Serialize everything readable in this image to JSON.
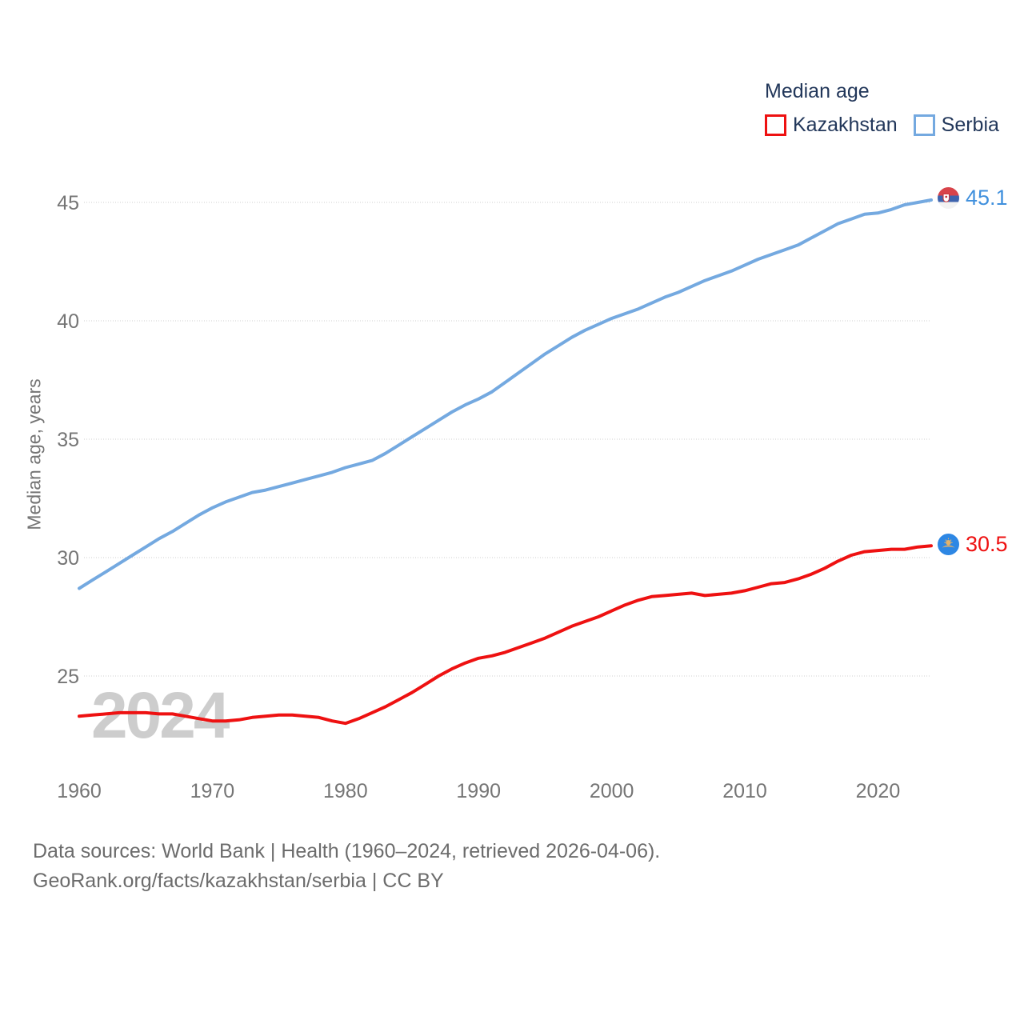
{
  "legend": {
    "title": "Median age",
    "items": [
      {
        "label": "Kazakhstan",
        "color": "#ee1111"
      },
      {
        "label": "Serbia",
        "color": "#74a9e0"
      }
    ]
  },
  "y_axis": {
    "title": "Median age, years",
    "ticks": [
      25,
      30,
      35,
      40,
      45
    ]
  },
  "x_axis": {
    "ticks": [
      1960,
      1970,
      1980,
      1990,
      2000,
      2010,
      2020
    ]
  },
  "end_labels": {
    "serbia": {
      "value": "45.1",
      "color": "#4090dd",
      "flag": "serbia-flag"
    },
    "kazakhstan": {
      "value": "30.5",
      "color": "#ee1111",
      "flag": "kazakhstan-flag"
    }
  },
  "watermark": "2024",
  "footer": {
    "line1": "Data sources: World Bank | Health (1960–2024, retrieved 2026-04-06).",
    "line2": "GeoRank.org/facts/kazakhstan/serbia | CC BY"
  },
  "chart_data": {
    "type": "line",
    "title": "Median age",
    "xlabel": "",
    "ylabel": "Median age, years",
    "ylim": [
      22,
      46
    ],
    "xlim": [
      1960,
      2024
    ],
    "grid": "horizontal-dotted",
    "legend_position": "top-right",
    "years": [
      1960,
      1961,
      1962,
      1963,
      1964,
      1965,
      1966,
      1967,
      1968,
      1969,
      1970,
      1971,
      1972,
      1973,
      1974,
      1975,
      1976,
      1977,
      1978,
      1979,
      1980,
      1981,
      1982,
      1983,
      1984,
      1985,
      1986,
      1987,
      1988,
      1989,
      1990,
      1991,
      1992,
      1993,
      1994,
      1995,
      1996,
      1997,
      1998,
      1999,
      2000,
      2001,
      2002,
      2003,
      2004,
      2005,
      2006,
      2007,
      2008,
      2009,
      2010,
      2011,
      2012,
      2013,
      2014,
      2015,
      2016,
      2017,
      2018,
      2019,
      2020,
      2021,
      2022,
      2023,
      2024
    ],
    "series": [
      {
        "name": "Kazakhstan",
        "color": "#ee1111",
        "end_value": 30.5,
        "values": [
          23.3,
          23.35,
          23.4,
          23.45,
          23.45,
          23.45,
          23.4,
          23.4,
          23.3,
          23.2,
          23.1,
          23.1,
          23.15,
          23.25,
          23.3,
          23.35,
          23.35,
          23.3,
          23.25,
          23.1,
          23.0,
          23.2,
          23.45,
          23.7,
          24.0,
          24.3,
          24.65,
          25.0,
          25.3,
          25.55,
          25.75,
          25.85,
          26.0,
          26.2,
          26.4,
          26.6,
          26.85,
          27.1,
          27.3,
          27.5,
          27.75,
          28.0,
          28.2,
          28.35,
          28.4,
          28.45,
          28.5,
          28.4,
          28.45,
          28.5,
          28.6,
          28.75,
          28.9,
          28.95,
          29.1,
          29.3,
          29.55,
          29.85,
          30.1,
          30.25,
          30.3,
          30.35,
          30.35,
          30.45,
          30.5
        ]
      },
      {
        "name": "Serbia",
        "color": "#74a9e0",
        "end_value": 45.1,
        "values": [
          28.7,
          29.05,
          29.4,
          29.75,
          30.1,
          30.45,
          30.8,
          31.1,
          31.45,
          31.8,
          32.1,
          32.35,
          32.55,
          32.75,
          32.85,
          33.0,
          33.15,
          33.3,
          33.45,
          33.6,
          33.8,
          33.95,
          34.1,
          34.4,
          34.75,
          35.1,
          35.45,
          35.8,
          36.15,
          36.45,
          36.7,
          37.0,
          37.4,
          37.8,
          38.2,
          38.6,
          38.95,
          39.3,
          39.6,
          39.85,
          40.1,
          40.3,
          40.5,
          40.75,
          41.0,
          41.2,
          41.45,
          41.7,
          41.9,
          42.1,
          42.35,
          42.6,
          42.8,
          43.0,
          43.2,
          43.5,
          43.8,
          44.1,
          44.3,
          44.5,
          44.55,
          44.7,
          44.9,
          45.0,
          45.1
        ]
      }
    ]
  }
}
